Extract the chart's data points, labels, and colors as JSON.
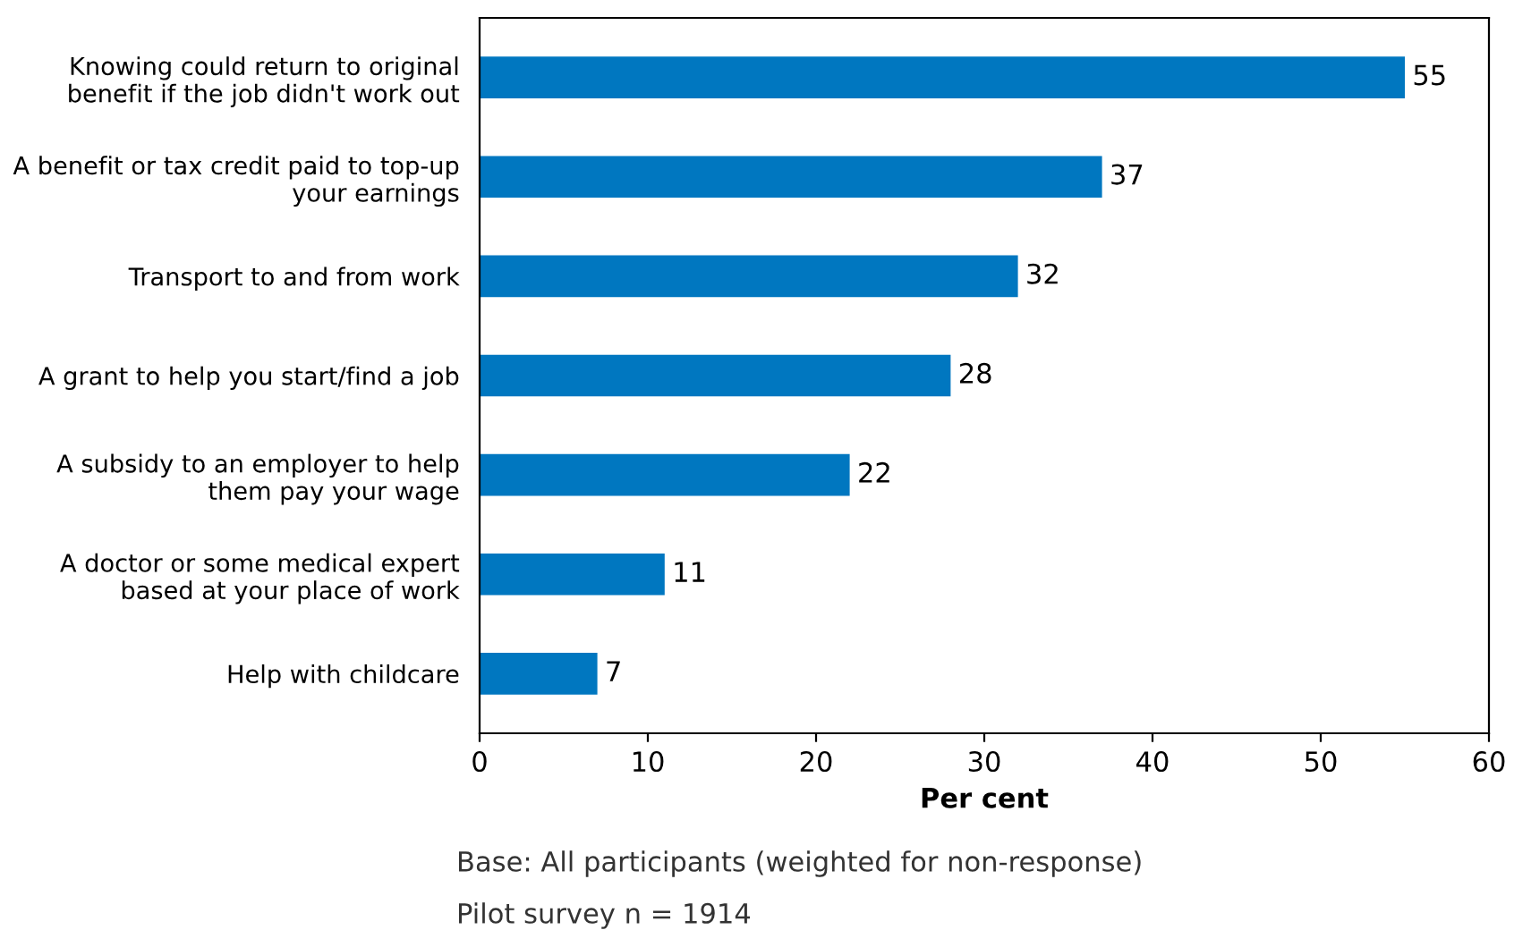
{
  "chart_data": {
    "type": "bar",
    "orientation": "horizontal",
    "categories": [
      "Knowing could return to original\nbenefit if the job didn't work out",
      "A benefit or tax credit paid to top-up\nyour earnings",
      "Transport to and from work",
      "A grant to help you start/find a job",
      "A subsidy to an employer to help\nthem pay your wage",
      "A doctor or some medical expert\nbased at your place of work",
      "Help with childcare"
    ],
    "values": [
      55,
      37,
      32,
      28,
      22,
      11,
      7
    ],
    "color": "#0077c0",
    "xlim": [
      0,
      60
    ],
    "xticks": [
      0,
      10,
      20,
      30,
      40,
      50,
      60
    ],
    "xlabel": "Per cent",
    "data_labels": true,
    "grid": false,
    "legend": false,
    "annotations": [
      "Base: All participants (weighted for non-response)",
      "Pilot survey n = 1914"
    ]
  }
}
